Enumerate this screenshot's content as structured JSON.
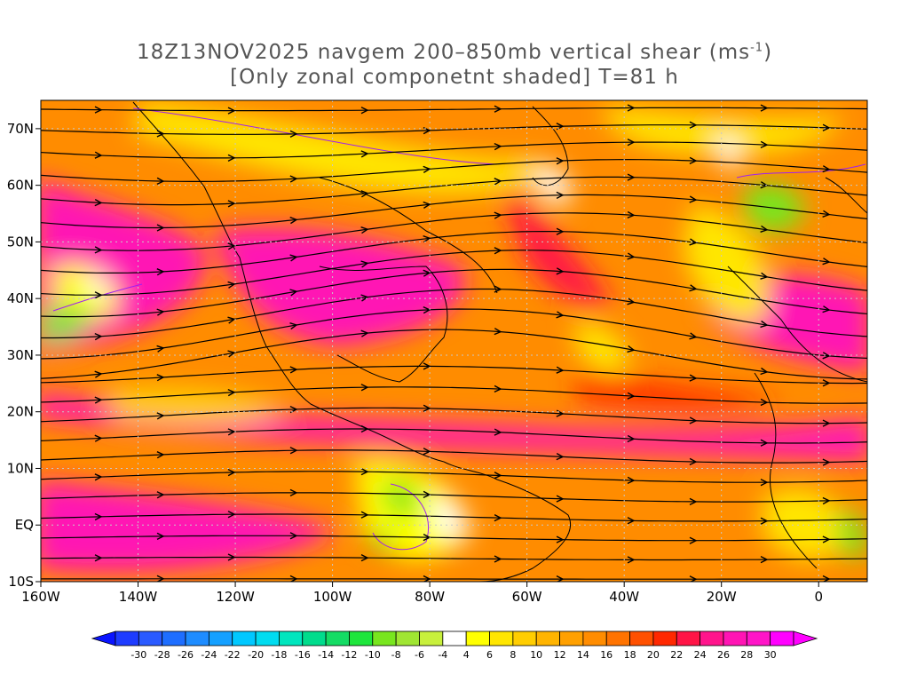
{
  "title": {
    "line1_prefix": "18Z13NOV2025 navgem 200–850mb vertical shear (ms",
    "line1_sup": "-1",
    "line1_suffix": ")",
    "line2": "[Only zonal componetnt shaded] T=81 h"
  },
  "map": {
    "lon_range": [
      -160,
      10
    ],
    "lat_range": [
      -10,
      75
    ],
    "lat_ticks": [
      {
        "value": 70,
        "label": "70N"
      },
      {
        "value": 60,
        "label": "60N"
      },
      {
        "value": 50,
        "label": "50N"
      },
      {
        "value": 40,
        "label": "40N"
      },
      {
        "value": 30,
        "label": "30N"
      },
      {
        "value": 20,
        "label": "20N"
      },
      {
        "value": 10,
        "label": "10N"
      },
      {
        "value": 0,
        "label": "EQ"
      },
      {
        "value": -10,
        "label": "10S"
      }
    ],
    "lon_ticks": [
      {
        "value": -160,
        "label": "160W"
      },
      {
        "value": -140,
        "label": "140W"
      },
      {
        "value": -120,
        "label": "120W"
      },
      {
        "value": -100,
        "label": "100W"
      },
      {
        "value": -80,
        "label": "80W"
      },
      {
        "value": -60,
        "label": "60W"
      },
      {
        "value": -40,
        "label": "40W"
      },
      {
        "value": -20,
        "label": "20W"
      },
      {
        "value": 0,
        "label": "0"
      }
    ],
    "grid": "dotted",
    "shading_variable": "zonal component of 200–850mb vertical shear",
    "streamlines": "black with arrowheads",
    "coastlines": "black"
  },
  "colorbar": {
    "levels": [
      "-30",
      "-28",
      "-26",
      "-24",
      "-22",
      "-20",
      "-18",
      "-16",
      "-14",
      "-12",
      "-10",
      "-8",
      "-6",
      "-4",
      "4",
      "6",
      "8",
      "10",
      "12",
      "14",
      "16",
      "18",
      "20",
      "22",
      "24",
      "26",
      "28",
      "30"
    ],
    "colors": [
      "#1e3cff",
      "#2a5aff",
      "#1e6eff",
      "#1e8cff",
      "#14a0ff",
      "#00c8ff",
      "#00dcf0",
      "#00e6be",
      "#00dc8c",
      "#14dc64",
      "#1ee63c",
      "#78e61e",
      "#a0e632",
      "#c8f03c",
      "#ffffff",
      "#ffff00",
      "#ffe600",
      "#ffcd00",
      "#ffb400",
      "#ffa000",
      "#ff8c00",
      "#ff7300",
      "#ff5000",
      "#ff2800",
      "#ff1446",
      "#ff148c",
      "#ff14b4",
      "#ff14c8",
      "#ff00ff"
    ]
  }
}
